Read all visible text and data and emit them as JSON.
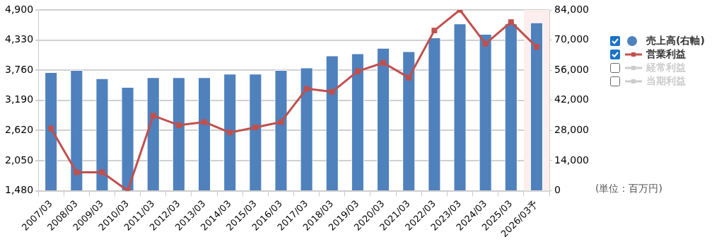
{
  "chart_data": {
    "type": "bar",
    "categories": [
      "2007/03",
      "2008/03",
      "2009/03",
      "2010/03",
      "2011/03",
      "2012/03",
      "2013/03",
      "2014/03",
      "2015/03",
      "2016/03",
      "2017/03",
      "2018/03",
      "2019/03",
      "2020/03",
      "2021/03",
      "2022/03",
      "2023/03",
      "2024/03",
      "2025/03",
      "2026/03予"
    ],
    "series": [
      {
        "name": "売上高(右軸)",
        "axis": "y2",
        "color": "#4f81bd",
        "values": [
          55100,
          56100,
          52200,
          48200,
          52700,
          52700,
          52700,
          54300,
          54300,
          56100,
          57200,
          62800,
          63800,
          66300,
          64800,
          71200,
          77700,
          72800,
          77700,
          78200
        ]
      },
      {
        "name": "営業利益",
        "type": "line",
        "color": "#c0504d",
        "values": [
          2660,
          1830,
          1830,
          1480,
          2900,
          2720,
          2780,
          2580,
          2680,
          2780,
          3410,
          3350,
          3740,
          3900,
          3620,
          4510,
          4900,
          4260,
          4670,
          4200
        ]
      },
      {
        "name": "経常利益",
        "type": "line",
        "color": "#cccccc",
        "values": [
          null,
          null,
          null,
          null,
          null,
          null,
          null,
          null,
          null,
          null,
          null,
          null,
          null,
          null,
          null,
          null,
          null,
          null,
          null,
          null
        ]
      },
      {
        "name": "当期利益",
        "type": "line",
        "color": "#cccccc",
        "values": [
          null,
          null,
          null,
          null,
          null,
          null,
          null,
          null,
          null,
          null,
          null,
          null,
          null,
          null,
          null,
          null,
          null,
          null,
          null,
          null
        ]
      }
    ],
    "ylim": [
      1480,
      4900
    ],
    "yticks": [
      {
        "value": 1480,
        "label": "1,480"
      },
      {
        "value": 2050,
        "label": "2,050"
      },
      {
        "value": 2620,
        "label": "2,620"
      },
      {
        "value": 3190,
        "label": "3,190"
      },
      {
        "value": 3760,
        "label": "3,760"
      },
      {
        "value": 4330,
        "label": "4,330"
      },
      {
        "value": 4900,
        "label": "4,900"
      }
    ],
    "y2lim": [
      0,
      84000
    ],
    "y2ticks": [
      0,
      {
        "value": 14000,
        "label": "14,000"
      },
      {
        "value": 28000,
        "label": "28,000"
      },
      {
        "value": 42000,
        "label": "42,000"
      },
      {
        "value": 56000,
        "label": "56,000"
      },
      {
        "value": 70000,
        "label": "70,000"
      },
      {
        "value": 84000,
        "label": "84,000"
      }
    ],
    "bands": [
      {
        "axis": "x",
        "from": "2026/03予",
        "to": "2026/03予",
        "color": "#fdeeee"
      }
    ],
    "annotations": [
      "(単位：百万円)"
    ],
    "grid": "y",
    "legend": "right",
    "marker": "square"
  }
}
